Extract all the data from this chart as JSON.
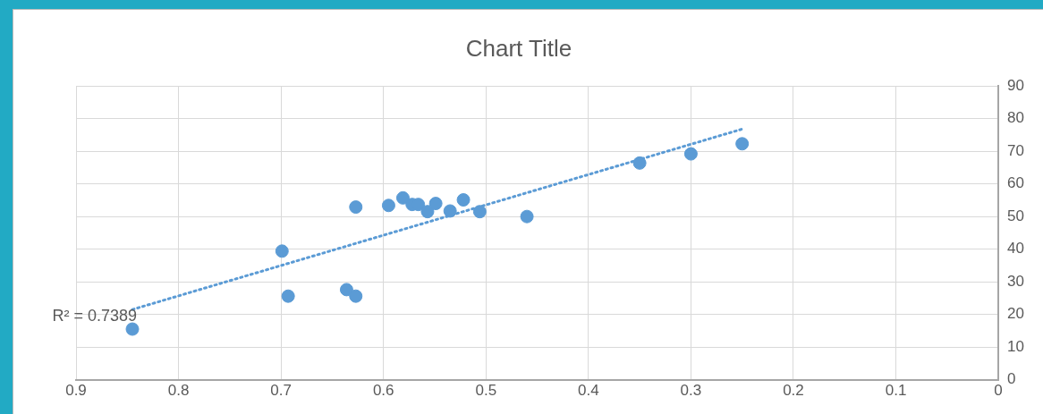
{
  "chart_data": {
    "type": "scatter",
    "title": "Chart Title",
    "grid": true,
    "legend": false,
    "marker": "circle",
    "xlim": [
      0.9,
      0
    ],
    "xticks": [
      0.9,
      0.8,
      0.7,
      0.6,
      0.5,
      0.4,
      0.3,
      0.2,
      0.1,
      0
    ],
    "ylim": [
      0,
      90
    ],
    "yticks": [
      0,
      10,
      20,
      30,
      40,
      50,
      60,
      70,
      80,
      90
    ],
    "series": [
      {
        "color": "#5b9bd5",
        "x": [
          0.845,
          0.699,
          0.693,
          0.636,
          0.627,
          0.627,
          0.595,
          0.581,
          0.572,
          0.566,
          0.557,
          0.549,
          0.535,
          0.522,
          0.506,
          0.46,
          0.35,
          0.3,
          0.25
        ],
        "values": [
          15.5,
          39.4,
          25.6,
          27.6,
          25.6,
          52.9,
          53.4,
          55.7,
          53.7,
          53.7,
          51.5,
          54,
          51.7,
          55.1,
          51.5,
          50,
          66.4,
          69.2,
          72.3
        ]
      },
      {
        "type": "line",
        "color": "#5b9bd5",
        "line_style": "dotted",
        "marker": "none",
        "x": [
          0.845,
          0.25
        ],
        "values": [
          21.5,
          76.8
        ]
      }
    ],
    "annotations": [
      {
        "text": "R² = 0.7389",
        "x": 0.845,
        "y": 21.5
      }
    ]
  }
}
